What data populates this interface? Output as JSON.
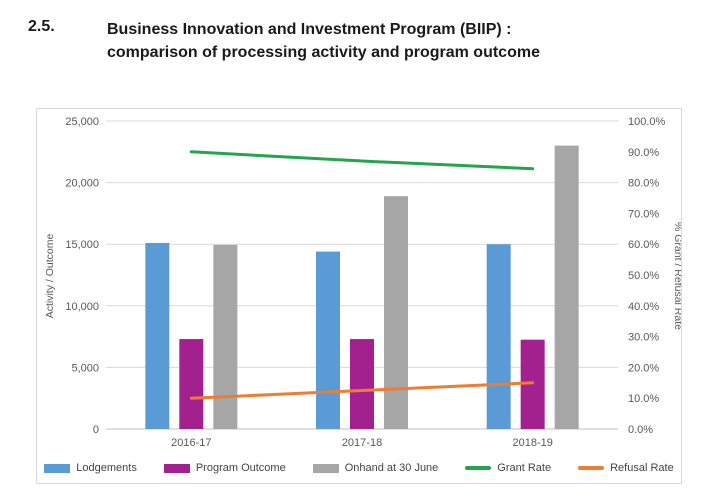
{
  "heading": {
    "number": "2.5.",
    "title_line1": "Business Innovation and Investment Program (BIIP) :",
    "title_line2": "comparison of processing activity and program outcome"
  },
  "chart_data": {
    "type": "bar",
    "subtype": "combo bar+line, dual axis",
    "categories": [
      "2016-17",
      "2017-18",
      "2018-19"
    ],
    "bar_series": [
      {
        "name": "Lodgements",
        "color": "#5B9BD5",
        "axis": "left",
        "values": [
          15100,
          14400,
          15000
        ]
      },
      {
        "name": "Program Outcome",
        "color": "#A3218E",
        "axis": "left",
        "values": [
          7300,
          7300,
          7250
        ]
      },
      {
        "name": "Onhand at 30 June",
        "color": "#A6A6A6",
        "axis": "left",
        "values": [
          14950,
          18900,
          23000
        ]
      }
    ],
    "line_series": [
      {
        "name": "Grant Rate",
        "color": "#22A54D",
        "axis": "right",
        "values": [
          90.0,
          87.0,
          84.5
        ]
      },
      {
        "name": "Refusal Rate",
        "color": "#ED7D31",
        "axis": "right",
        "values": [
          10.0,
          12.5,
          15.0
        ]
      }
    ],
    "left_axis": {
      "title": "Activity / Outcome",
      "min": 0,
      "max": 25000,
      "step": 5000,
      "tick_labels": [
        "25,000",
        "20,000",
        "15,000",
        "10,000",
        "5,000",
        "0"
      ]
    },
    "right_axis": {
      "title": "% Grant / Refusal Rate",
      "min": 0,
      "max": 100,
      "step": 10,
      "tick_labels": [
        "100.0%",
        "90.0%",
        "80.0%",
        "70.0%",
        "60.0%",
        "50.0%",
        "40.0%",
        "30.0%",
        "20.0%",
        "10.0%",
        "0.0%"
      ]
    },
    "grid": true,
    "legend_position": "bottom",
    "legend": [
      "Lodgements",
      "Program Outcome",
      "Onhand at 30 June",
      "Grant Rate",
      "Refusal Rate"
    ]
  },
  "colors": {
    "grid": "#D9D9D9",
    "baseline": "#BFBFBF",
    "tick_text": "#595959"
  }
}
